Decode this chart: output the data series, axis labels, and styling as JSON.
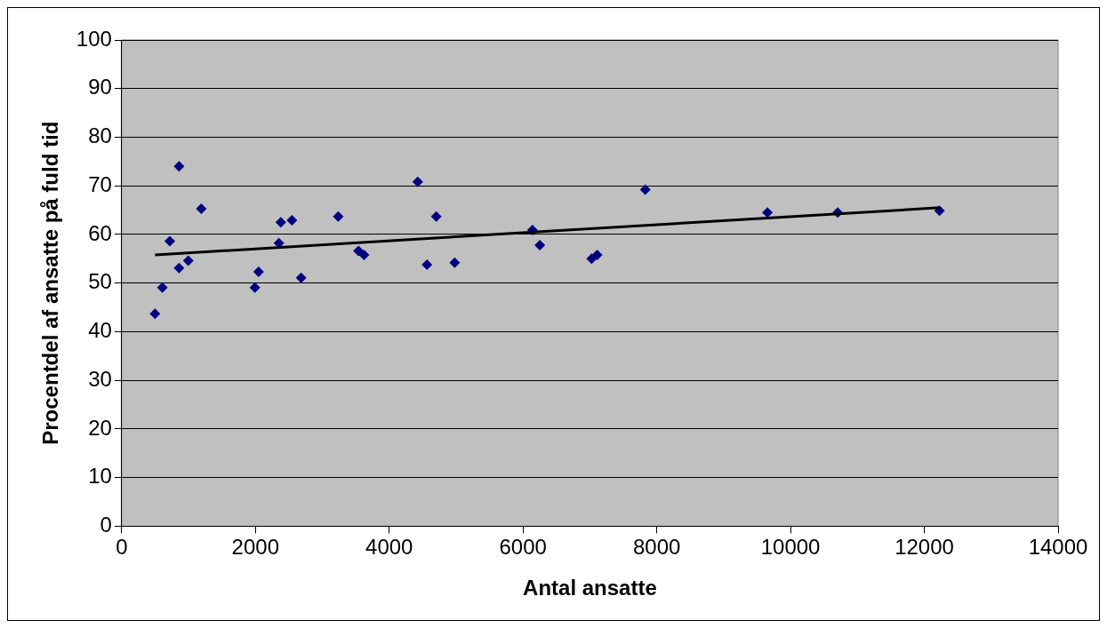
{
  "chart_data": {
    "type": "scatter",
    "xlabel": "Antal ansatte",
    "ylabel": "Procentdel af ansatte på fuld tid",
    "xlim": [
      0,
      14000
    ],
    "xticks": [
      0,
      2000,
      4000,
      6000,
      8000,
      10000,
      12000,
      14000
    ],
    "ylim": [
      0,
      100
    ],
    "yticks": [
      0,
      10,
      20,
      30,
      40,
      50,
      60,
      70,
      80,
      90,
      100
    ],
    "grid": "y",
    "legend": false,
    "marker": "diamond",
    "series": [
      {
        "type": "scatter",
        "color": "#000080",
        "x": [
          498,
          609,
          719,
          858,
          858,
          996,
          1190,
          1992,
          2047,
          2351,
          2379,
          2545,
          2683,
          3237,
          3541,
          3624,
          4426,
          4564,
          4703,
          4979,
          6141,
          6252,
          7026,
          7109,
          7828,
          9654,
          10705,
          12227
        ],
        "values": [
          43.7,
          49.1,
          58.6,
          74.0,
          53.1,
          54.6,
          65.3,
          49.1,
          52.3,
          58.2,
          62.5,
          62.9,
          51.1,
          63.7,
          56.6,
          55.8,
          70.8,
          53.8,
          63.7,
          54.2,
          60.9,
          57.8,
          55.0,
          55.8,
          69.2,
          64.5,
          64.5,
          64.9
        ]
      },
      {
        "type": "line",
        "color": "#000000",
        "marker": "none",
        "x": [
          498,
          12227
        ],
        "values": [
          55.8,
          65.5
        ]
      }
    ]
  }
}
